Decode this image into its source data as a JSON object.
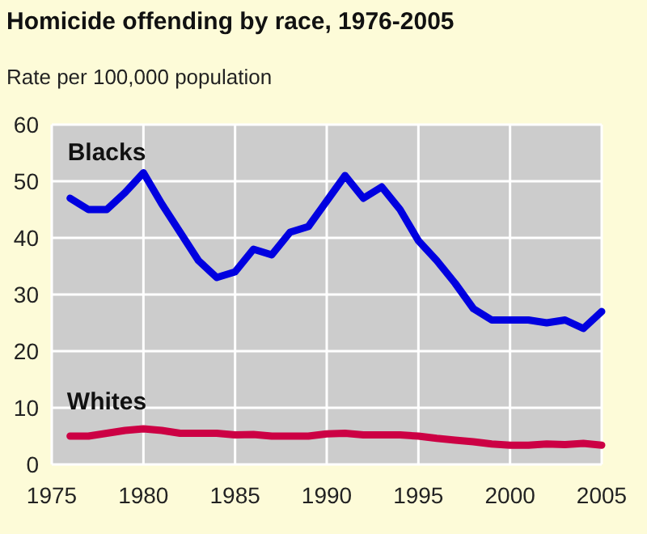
{
  "chart_data": {
    "type": "line",
    "title": "Homicide offending by race, 1976-2005",
    "ylabel": "Rate per 100,000 population",
    "x": [
      1976,
      1977,
      1978,
      1979,
      1980,
      1981,
      1982,
      1983,
      1984,
      1985,
      1986,
      1987,
      1988,
      1989,
      1990,
      1991,
      1992,
      1993,
      1994,
      1995,
      1996,
      1997,
      1998,
      1999,
      2000,
      2001,
      2002,
      2003,
      2004,
      2005
    ],
    "series": [
      {
        "name": "Blacks",
        "color": "#0000e0",
        "values": [
          47,
          45,
          45,
          48,
          51.5,
          46,
          41,
          36,
          33,
          34,
          38,
          37,
          41,
          42,
          46.5,
          51,
          47,
          49,
          45,
          39.5,
          36,
          32,
          27.5,
          25.5,
          25.5,
          25.5,
          25,
          25.5,
          24,
          27
        ]
      },
      {
        "name": "Whites",
        "color": "#cc0044",
        "values": [
          5,
          5,
          5.5,
          6,
          6.3,
          6,
          5.5,
          5.5,
          5.5,
          5.2,
          5.3,
          5,
          5,
          5,
          5.4,
          5.5,
          5.2,
          5.2,
          5.2,
          5,
          4.6,
          4.3,
          4,
          3.6,
          3.4,
          3.4,
          3.6,
          3.5,
          3.7,
          3.4
        ]
      }
    ],
    "xlim": [
      1975,
      2005
    ],
    "xticks": [
      1975,
      1980,
      1985,
      1990,
      1995,
      2000,
      2005
    ],
    "ylim": [
      0,
      60
    ],
    "yticks": [
      0,
      10,
      20,
      30,
      40,
      50,
      60
    ],
    "grid": true,
    "legend": false
  }
}
